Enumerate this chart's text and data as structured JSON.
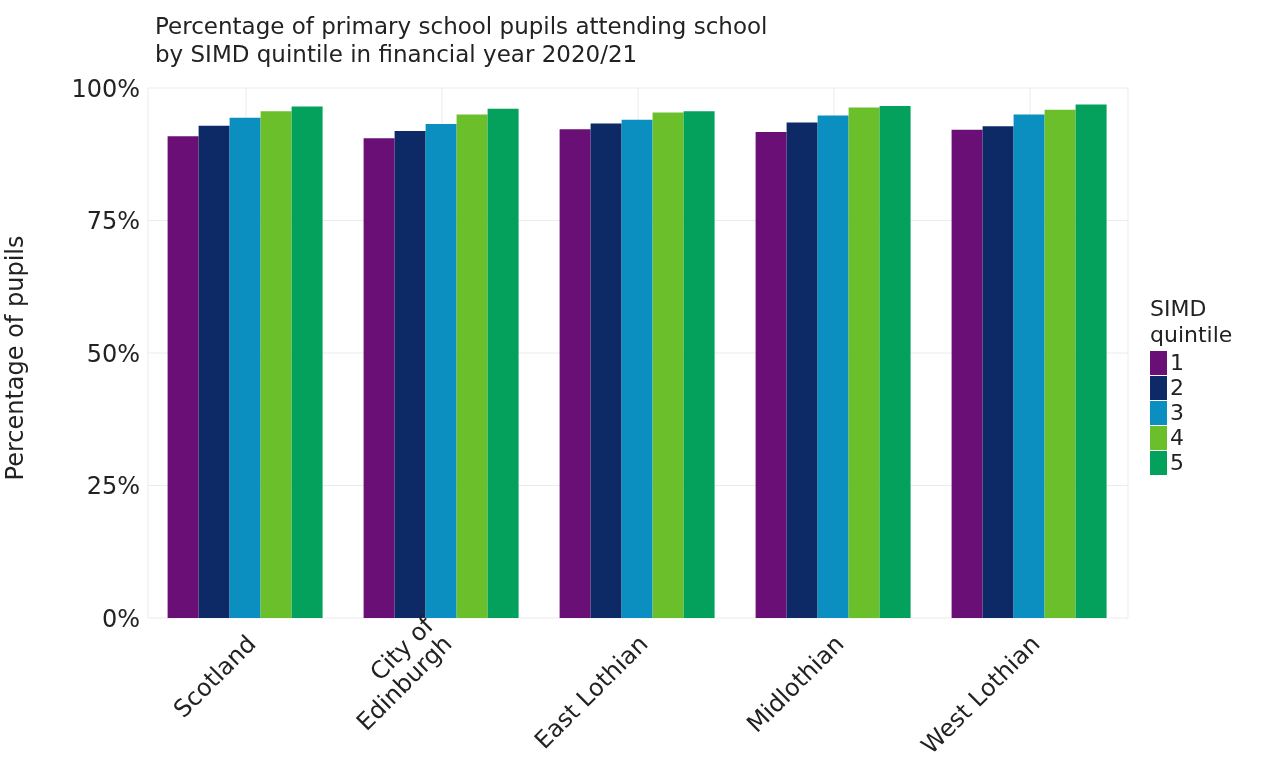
{
  "chart_data": {
    "type": "bar",
    "title": "Percentage of primary school pupils attending school\nby SIMD quintile in financial year 2020/21",
    "ylabel": "Percentage of pupils",
    "legend_title": "SIMD\nquintile",
    "categories": [
      "Scotland",
      "City of\nEdinburgh",
      "East Lothian",
      "Midlothian",
      "West Lothian"
    ],
    "series": [
      {
        "name": "1",
        "color": "#6a0f75",
        "values": [
          90.9,
          90.5,
          92.2,
          91.7,
          92.1
        ]
      },
      {
        "name": "2",
        "color": "#0d2a66",
        "values": [
          92.9,
          91.9,
          93.3,
          93.5,
          92.8
        ]
      },
      {
        "name": "3",
        "color": "#0b8fc1",
        "values": [
          94.4,
          93.2,
          94.0,
          94.8,
          95.0
        ]
      },
      {
        "name": "4",
        "color": "#6bbf2a",
        "values": [
          95.6,
          95.0,
          95.4,
          96.3,
          95.9
        ]
      },
      {
        "name": "5",
        "color": "#03a15b",
        "values": [
          96.5,
          96.1,
          95.6,
          96.6,
          96.9
        ]
      }
    ],
    "ylim": [
      0,
      100
    ],
    "yticks": [
      {
        "value": 0,
        "label": "0%"
      },
      {
        "value": 25,
        "label": "25%"
      },
      {
        "value": 50,
        "label": "50%"
      },
      {
        "value": 75,
        "label": "75%"
      },
      {
        "value": 100,
        "label": "100%"
      }
    ],
    "grid": true,
    "legend": "right"
  }
}
